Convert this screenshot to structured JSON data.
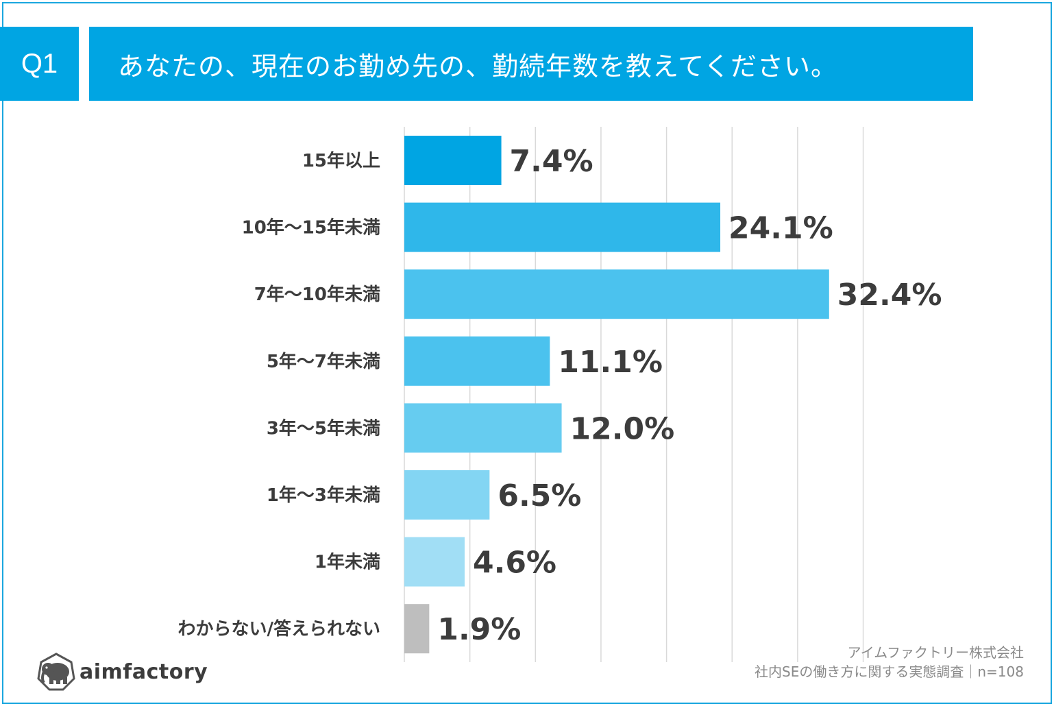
{
  "header": {
    "badge": "Q1",
    "title": "あなたの、現在のお勤め先の、勤続年数を教えてください。"
  },
  "chart_data": {
    "type": "bar",
    "orientation": "horizontal",
    "title": "あなたの、現在のお勤め先の、勤続年数を教えてください。",
    "unit": "%",
    "xlim": [
      0,
      36
    ],
    "grid": true,
    "categories": [
      "15年以上",
      "10年〜15年未満",
      "7年〜10年未満",
      "5年〜7年未満",
      "3年〜5年未満",
      "1年〜3年未満",
      "1年未満",
      "わからない/答えられない"
    ],
    "values": [
      7.4,
      24.1,
      32.4,
      11.1,
      12.0,
      6.5,
      4.6,
      1.9
    ],
    "value_labels": [
      "7.4%",
      "24.1%",
      "32.4%",
      "11.1%",
      "12.0%",
      "6.5%",
      "4.6%",
      "1.9%"
    ],
    "colors": [
      "#00a5e3",
      "#2fb7ea",
      "#4bc2ee",
      "#4bc2ee",
      "#66ccf0",
      "#83d5f3",
      "#a1def5",
      "#bebebe"
    ]
  },
  "footer": {
    "source_line1": "アイムファクトリー株式会社",
    "source_line2": "社内SEの働き方に関する実態調査｜n=108",
    "logo_text": "aimfactory"
  }
}
